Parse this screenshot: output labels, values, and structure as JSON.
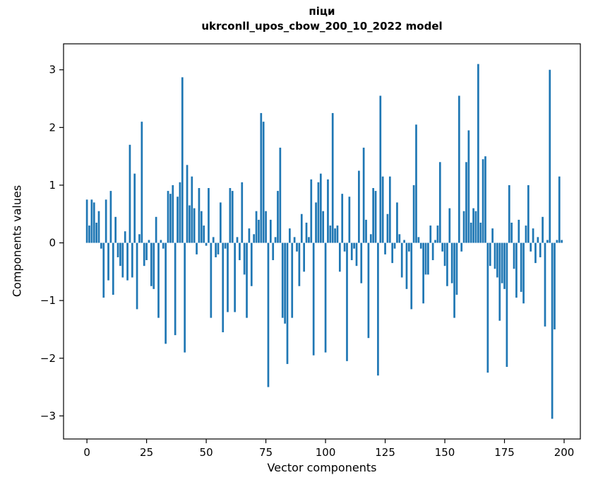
{
  "figure": {
    "title_line1": "піци",
    "title_line2": "ukrconll_upos_cbow_200_10_2022 model",
    "xlabel": "Vector components",
    "ylabel": "Components values"
  },
  "chart_data": {
    "type": "bar",
    "title": "піци — ukrconll_upos_cbow_200_10_2022 model",
    "xlabel": "Vector components",
    "ylabel": "Components values",
    "bar_color": "#1f77b4",
    "axis_color": "#000000",
    "n_components": 200,
    "xlim": [
      -9.8,
      206.8
    ],
    "ylim": [
      -3.4,
      3.45
    ],
    "xticks": [
      0,
      25,
      50,
      75,
      100,
      125,
      150,
      175,
      200
    ],
    "yticks": [
      3,
      2,
      1,
      0,
      -1,
      -2,
      -3
    ],
    "bar_width": 0.8,
    "grid": false,
    "legend": false,
    "values": [
      0.75,
      0.3,
      0.75,
      0.7,
      0.35,
      0.55,
      -0.1,
      -0.95,
      0.75,
      -0.65,
      0.9,
      -0.9,
      0.45,
      -0.25,
      -0.4,
      -0.6,
      0.2,
      -0.65,
      1.7,
      -0.6,
      1.2,
      -1.15,
      0.15,
      2.1,
      -0.4,
      -0.3,
      0.05,
      -0.75,
      -0.8,
      0.45,
      -1.3,
      0.05,
      -0.1,
      -1.75,
      0.9,
      0.85,
      1.0,
      -1.6,
      0.8,
      1.05,
      2.87,
      -1.9,
      1.35,
      0.65,
      1.15,
      0.6,
      -0.2,
      0.95,
      0.55,
      0.3,
      -0.05,
      0.95,
      -1.3,
      0.1,
      -0.25,
      -0.2,
      0.7,
      -1.55,
      -0.1,
      -1.2,
      0.95,
      0.9,
      -1.2,
      0.1,
      -0.3,
      1.05,
      -0.55,
      -1.3,
      0.25,
      -0.75,
      0.15,
      0.55,
      0.4,
      2.25,
      2.1,
      0.55,
      -2.5,
      0.4,
      -0.3,
      0.1,
      0.9,
      1.65,
      -1.3,
      -1.4,
      -2.1,
      0.25,
      -1.3,
      0.1,
      -0.15,
      -0.75,
      0.5,
      -0.5,
      0.35,
      0.1,
      1.1,
      -1.95,
      0.7,
      1.05,
      1.2,
      0.55,
      -1.9,
      1.1,
      0.3,
      2.25,
      0.25,
      0.3,
      -0.5,
      0.85,
      -0.15,
      -2.05,
      0.8,
      -0.3,
      -0.1,
      -0.4,
      1.25,
      -0.7,
      1.65,
      0.4,
      -1.65,
      0.15,
      0.95,
      0.9,
      -2.3,
      2.55,
      1.15,
      -0.2,
      0.5,
      1.15,
      -0.35,
      -0.1,
      0.7,
      0.15,
      -0.6,
      0.05,
      -0.8,
      -0.15,
      -1.15,
      1.0,
      2.05,
      0.1,
      -0.1,
      -1.05,
      -0.55,
      -0.55,
      0.3,
      -0.3,
      0.05,
      0.3,
      1.4,
      -0.15,
      -0.4,
      -0.75,
      0.6,
      -0.7,
      -1.3,
      -0.9,
      2.55,
      -0.15,
      0.55,
      1.4,
      1.95,
      0.35,
      0.6,
      0.55,
      3.1,
      0.35,
      1.45,
      1.5,
      -2.25,
      -0.4,
      0.25,
      -0.45,
      -0.6,
      -1.35,
      -0.7,
      -0.8,
      -2.15,
      1.0,
      0.35,
      -0.45,
      -0.95,
      0.4,
      -0.85,
      -1.05,
      0.3,
      1.0,
      -0.15,
      0.25,
      -0.35,
      0.1,
      -0.25,
      0.45,
      -1.45,
      0.05,
      3.0,
      -3.05,
      -1.5,
      0.05,
      1.15,
      0.05
    ]
  }
}
